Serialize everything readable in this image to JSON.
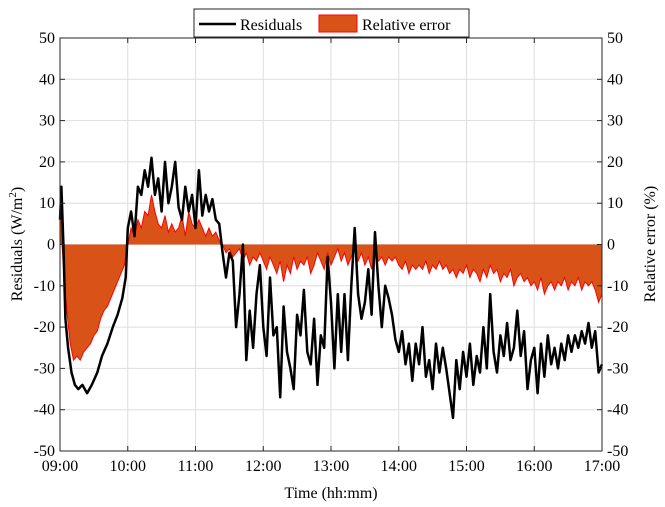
{
  "chart_data": {
    "type": "line",
    "xlabel": "Time (hh:mm)",
    "ylabel_left_base": "Residuals (W/m",
    "ylabel_left_sup": "2",
    "ylabel_left_close": ")",
    "ylabel_right": "Relative error (%)",
    "x_ticks": [
      "09:00",
      "10:00",
      "11:00",
      "12:00",
      "13:00",
      "14:00",
      "15:00",
      "16:00",
      "17:00"
    ],
    "x_range_hours": [
      9,
      17
    ],
    "ylim_left": [
      -50,
      50
    ],
    "ylim_right": [
      -50,
      50
    ],
    "y_ticks": [
      -50,
      -40,
      -30,
      -20,
      -10,
      0,
      10,
      20,
      30,
      40,
      50
    ],
    "grid": true,
    "legend_position": "top-center",
    "series": [
      {
        "name": "Residuals",
        "color": "#000000",
        "axis": "left",
        "points": [
          [
            9.0,
            6
          ],
          [
            9.02,
            14
          ],
          [
            9.05,
            0
          ],
          [
            9.08,
            -18
          ],
          [
            9.12,
            -25
          ],
          [
            9.17,
            -31
          ],
          [
            9.22,
            -34
          ],
          [
            9.27,
            -35
          ],
          [
            9.33,
            -34
          ],
          [
            9.4,
            -36
          ],
          [
            9.47,
            -34
          ],
          [
            9.55,
            -31
          ],
          [
            9.62,
            -27
          ],
          [
            9.7,
            -24
          ],
          [
            9.78,
            -20
          ],
          [
            9.85,
            -17
          ],
          [
            9.92,
            -13
          ],
          [
            9.97,
            -8
          ],
          [
            10.0,
            4
          ],
          [
            10.05,
            8
          ],
          [
            10.1,
            2
          ],
          [
            10.15,
            14
          ],
          [
            10.2,
            12
          ],
          [
            10.25,
            18
          ],
          [
            10.3,
            14
          ],
          [
            10.35,
            21
          ],
          [
            10.4,
            12
          ],
          [
            10.45,
            16
          ],
          [
            10.5,
            8
          ],
          [
            10.55,
            20
          ],
          [
            10.6,
            10
          ],
          [
            10.65,
            14
          ],
          [
            10.7,
            20
          ],
          [
            10.75,
            9
          ],
          [
            10.8,
            6
          ],
          [
            10.85,
            14
          ],
          [
            10.9,
            8
          ],
          [
            10.95,
            12
          ],
          [
            11.0,
            4
          ],
          [
            11.05,
            18
          ],
          [
            11.1,
            7
          ],
          [
            11.15,
            12
          ],
          [
            11.2,
            8
          ],
          [
            11.25,
            11
          ],
          [
            11.3,
            6
          ],
          [
            11.35,
            5
          ],
          [
            11.4,
            -2
          ],
          [
            11.45,
            -8
          ],
          [
            11.5,
            -2
          ],
          [
            11.55,
            -4
          ],
          [
            11.6,
            -20
          ],
          [
            11.65,
            -12
          ],
          [
            11.7,
            0
          ],
          [
            11.75,
            -28
          ],
          [
            11.8,
            -16
          ],
          [
            11.85,
            -25
          ],
          [
            11.9,
            -12
          ],
          [
            11.95,
            -5
          ],
          [
            12.0,
            -20
          ],
          [
            12.05,
            -27
          ],
          [
            12.1,
            -8
          ],
          [
            12.15,
            -22
          ],
          [
            12.2,
            -20
          ],
          [
            12.25,
            -37
          ],
          [
            12.3,
            -15
          ],
          [
            12.35,
            -26
          ],
          [
            12.4,
            -30
          ],
          [
            12.45,
            -35
          ],
          [
            12.5,
            -17
          ],
          [
            12.55,
            -22
          ],
          [
            12.6,
            -11
          ],
          [
            12.65,
            -26
          ],
          [
            12.7,
            -29
          ],
          [
            12.75,
            -18
          ],
          [
            12.8,
            -34
          ],
          [
            12.85,
            -22
          ],
          [
            12.9,
            -25
          ],
          [
            12.95,
            -3
          ],
          [
            13.0,
            -14
          ],
          [
            13.05,
            -30
          ],
          [
            13.1,
            -12
          ],
          [
            13.15,
            -26
          ],
          [
            13.2,
            -12
          ],
          [
            13.25,
            -28
          ],
          [
            13.3,
            -10
          ],
          [
            13.35,
            4
          ],
          [
            13.4,
            -12
          ],
          [
            13.45,
            -18
          ],
          [
            13.5,
            -14
          ],
          [
            13.55,
            -6
          ],
          [
            13.6,
            -17
          ],
          [
            13.65,
            3
          ],
          [
            13.7,
            -10
          ],
          [
            13.75,
            -20
          ],
          [
            13.8,
            -10
          ],
          [
            13.85,
            -13
          ],
          [
            13.9,
            -17
          ],
          [
            13.95,
            -23
          ],
          [
            14.0,
            -26
          ],
          [
            14.05,
            -21
          ],
          [
            14.1,
            -29
          ],
          [
            14.15,
            -24
          ],
          [
            14.2,
            -33
          ],
          [
            14.25,
            -24
          ],
          [
            14.3,
            -29
          ],
          [
            14.35,
            -20
          ],
          [
            14.4,
            -32
          ],
          [
            14.45,
            -28
          ],
          [
            14.5,
            -35
          ],
          [
            14.55,
            -24
          ],
          [
            14.6,
            -31
          ],
          [
            14.65,
            -25
          ],
          [
            14.7,
            -30
          ],
          [
            14.75,
            -36
          ],
          [
            14.8,
            -42
          ],
          [
            14.85,
            -28
          ],
          [
            14.9,
            -35
          ],
          [
            14.95,
            -26
          ],
          [
            15.0,
            -32
          ],
          [
            15.05,
            -24
          ],
          [
            15.1,
            -34
          ],
          [
            15.15,
            -27
          ],
          [
            15.2,
            -31
          ],
          [
            15.25,
            -20
          ],
          [
            15.3,
            -30
          ],
          [
            15.35,
            -12
          ],
          [
            15.4,
            -26
          ],
          [
            15.45,
            -31
          ],
          [
            15.5,
            -22
          ],
          [
            15.55,
            -27
          ],
          [
            15.6,
            -19
          ],
          [
            15.65,
            -28
          ],
          [
            15.7,
            -25
          ],
          [
            15.75,
            -16
          ],
          [
            15.8,
            -27
          ],
          [
            15.85,
            -21
          ],
          [
            15.9,
            -35
          ],
          [
            15.95,
            -28
          ],
          [
            16.0,
            -25
          ],
          [
            16.05,
            -36
          ],
          [
            16.1,
            -24
          ],
          [
            16.15,
            -32
          ],
          [
            16.2,
            -22
          ],
          [
            16.25,
            -29
          ],
          [
            16.3,
            -25
          ],
          [
            16.35,
            -30
          ],
          [
            16.4,
            -24
          ],
          [
            16.45,
            -28
          ],
          [
            16.5,
            -22
          ],
          [
            16.55,
            -26
          ],
          [
            16.6,
            -22
          ],
          [
            16.65,
            -25
          ],
          [
            16.7,
            -21
          ],
          [
            16.75,
            -24
          ],
          [
            16.8,
            -19
          ],
          [
            16.85,
            -25
          ],
          [
            16.9,
            -21
          ],
          [
            16.95,
            -31
          ],
          [
            17.0,
            -29
          ]
        ]
      },
      {
        "name": "Relative error",
        "color": "#d95319",
        "edge_color": "#ff0000",
        "axis": "right",
        "style": "area",
        "points": [
          [
            9.0,
            14
          ],
          [
            9.03,
            0
          ],
          [
            9.06,
            -8
          ],
          [
            9.1,
            -16
          ],
          [
            9.15,
            -24
          ],
          [
            9.2,
            -28
          ],
          [
            9.25,
            -27
          ],
          [
            9.3,
            -28
          ],
          [
            9.35,
            -26
          ],
          [
            9.4,
            -25
          ],
          [
            9.45,
            -24
          ],
          [
            9.5,
            -22
          ],
          [
            9.55,
            -21
          ],
          [
            9.6,
            -18
          ],
          [
            9.65,
            -16
          ],
          [
            9.7,
            -15
          ],
          [
            9.75,
            -13
          ],
          [
            9.8,
            -11
          ],
          [
            9.85,
            -9
          ],
          [
            9.9,
            -7
          ],
          [
            9.95,
            -5
          ],
          [
            10.0,
            0
          ],
          [
            10.05,
            4
          ],
          [
            10.1,
            2
          ],
          [
            10.15,
            6
          ],
          [
            10.2,
            4
          ],
          [
            10.25,
            8
          ],
          [
            10.3,
            7
          ],
          [
            10.35,
            12
          ],
          [
            10.4,
            8
          ],
          [
            10.45,
            5
          ],
          [
            10.5,
            4
          ],
          [
            10.55,
            7
          ],
          [
            10.6,
            3
          ],
          [
            10.65,
            5
          ],
          [
            10.7,
            3
          ],
          [
            10.75,
            4
          ],
          [
            10.8,
            7
          ],
          [
            10.85,
            2
          ],
          [
            10.9,
            8
          ],
          [
            10.95,
            5
          ],
          [
            11.0,
            4
          ],
          [
            11.05,
            6
          ],
          [
            11.1,
            4
          ],
          [
            11.15,
            2
          ],
          [
            11.2,
            4
          ],
          [
            11.25,
            2
          ],
          [
            11.3,
            3
          ],
          [
            11.35,
            1
          ],
          [
            11.4,
            0
          ],
          [
            11.45,
            -2
          ],
          [
            11.5,
            -1
          ],
          [
            11.55,
            -3
          ],
          [
            11.6,
            -2
          ],
          [
            11.65,
            -1
          ],
          [
            11.7,
            -4
          ],
          [
            11.75,
            -2
          ],
          [
            11.8,
            -5
          ],
          [
            11.85,
            -3
          ],
          [
            11.9,
            -4
          ],
          [
            11.95,
            -2
          ],
          [
            12.0,
            -4
          ],
          [
            12.05,
            -6
          ],
          [
            12.1,
            -3
          ],
          [
            12.15,
            -5
          ],
          [
            12.2,
            -7
          ],
          [
            12.25,
            -4
          ],
          [
            12.3,
            -9
          ],
          [
            12.35,
            -5
          ],
          [
            12.4,
            -7
          ],
          [
            12.45,
            -3
          ],
          [
            12.5,
            -6
          ],
          [
            12.55,
            -4
          ],
          [
            12.6,
            -5
          ],
          [
            12.65,
            -3
          ],
          [
            12.7,
            -7
          ],
          [
            12.75,
            -5
          ],
          [
            12.8,
            -2
          ],
          [
            12.85,
            -4
          ],
          [
            12.9,
            -6
          ],
          [
            12.95,
            -2
          ],
          [
            13.0,
            -5
          ],
          [
            13.05,
            -3
          ],
          [
            13.1,
            -1
          ],
          [
            13.15,
            -4
          ],
          [
            13.2,
            -2
          ],
          [
            13.25,
            -5
          ],
          [
            13.3,
            -3
          ],
          [
            13.35,
            -1
          ],
          [
            13.4,
            -4
          ],
          [
            13.45,
            -2
          ],
          [
            13.5,
            -5
          ],
          [
            13.55,
            -3
          ],
          [
            13.6,
            -6
          ],
          [
            13.65,
            -2
          ],
          [
            13.7,
            -4
          ],
          [
            13.75,
            -3
          ],
          [
            13.8,
            -5
          ],
          [
            13.85,
            -3
          ],
          [
            13.9,
            -4
          ],
          [
            13.95,
            -3
          ],
          [
            14.0,
            -5
          ],
          [
            14.05,
            -6
          ],
          [
            14.1,
            -4
          ],
          [
            14.15,
            -7
          ],
          [
            14.2,
            -5
          ],
          [
            14.25,
            -6
          ],
          [
            14.3,
            -5
          ],
          [
            14.35,
            -6
          ],
          [
            14.4,
            -4
          ],
          [
            14.45,
            -7
          ],
          [
            14.5,
            -5
          ],
          [
            14.55,
            -6
          ],
          [
            14.6,
            -4
          ],
          [
            14.65,
            -6
          ],
          [
            14.7,
            -5
          ],
          [
            14.75,
            -7
          ],
          [
            14.8,
            -6
          ],
          [
            14.85,
            -8
          ],
          [
            14.9,
            -6
          ],
          [
            14.95,
            -7
          ],
          [
            15.0,
            -5
          ],
          [
            15.05,
            -8
          ],
          [
            15.1,
            -6
          ],
          [
            15.15,
            -7
          ],
          [
            15.2,
            -9
          ],
          [
            15.25,
            -6
          ],
          [
            15.3,
            -8
          ],
          [
            15.35,
            -5
          ],
          [
            15.4,
            -7
          ],
          [
            15.45,
            -6
          ],
          [
            15.5,
            -9
          ],
          [
            15.55,
            -7
          ],
          [
            15.6,
            -8
          ],
          [
            15.65,
            -6
          ],
          [
            15.7,
            -10
          ],
          [
            15.75,
            -8
          ],
          [
            15.8,
            -7
          ],
          [
            15.85,
            -9
          ],
          [
            15.9,
            -8
          ],
          [
            15.95,
            -10
          ],
          [
            16.0,
            -9
          ],
          [
            16.05,
            -11
          ],
          [
            16.1,
            -8
          ],
          [
            16.15,
            -12
          ],
          [
            16.2,
            -10
          ],
          [
            16.25,
            -9
          ],
          [
            16.3,
            -11
          ],
          [
            16.35,
            -9
          ],
          [
            16.4,
            -10
          ],
          [
            16.45,
            -8
          ],
          [
            16.5,
            -11
          ],
          [
            16.55,
            -9
          ],
          [
            16.6,
            -10
          ],
          [
            16.65,
            -8
          ],
          [
            16.7,
            -11
          ],
          [
            16.75,
            -9
          ],
          [
            16.8,
            -10
          ],
          [
            16.85,
            -9
          ],
          [
            16.9,
            -11
          ],
          [
            16.95,
            -14
          ],
          [
            17.0,
            -12
          ]
        ]
      }
    ],
    "legend": {
      "residuals_label": "Residuals",
      "relative_error_label": "Relative error"
    }
  }
}
